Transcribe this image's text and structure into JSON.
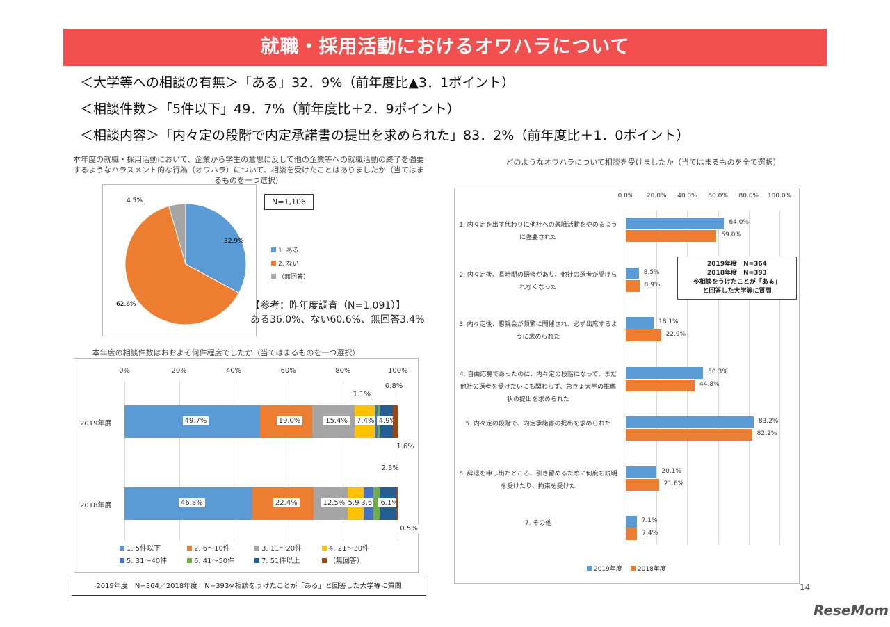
{
  "title": "就職・採用活動におけるオワハラについて",
  "headlines": [
    "＜大学等への相談の有無＞「ある」32．9%（前年度比▲3．1ポイント）",
    "＜相談件数＞「5件以下」49．7%（前年度比＋2．9ポイント）",
    "＜相談内容＞「内々定の段階で内定承諾書の提出を求められた」83．2%（前年度比＋1．0ポイント）"
  ],
  "page_number": "14",
  "logo": "ReseMom",
  "chart_data": [
    {
      "type": "pie",
      "title": "本年度の就職・採用活動において、企業から学生の意思に反して他の企業等への就職活動の終了を強要するようなハラスメント的な行為（オワハラ）について、相談を受けたことはありましたか（当てはまるものを一つ選択）",
      "n_label": "N=1,106",
      "slices": [
        {
          "label": "1. ある",
          "value": 32.9,
          "text": "32.9%",
          "color": "#5b9bd5"
        },
        {
          "label": "2. ない",
          "value": 62.6,
          "text": "62.6%",
          "color": "#ed7d31"
        },
        {
          "label": "（無回答）",
          "value": 4.5,
          "text": "4.5%",
          "color": "#a5a5a5"
        }
      ],
      "note_title": "【参考：昨年度調査（N=1,091）】",
      "note_body": "ある36.0%、ない60.6%、無回答3.4%"
    },
    {
      "type": "bar",
      "stacked": true,
      "title": "本年度の相談件数はおおよそ何件程度でしたか（当てはまるものを一つ選択）",
      "xticks": [
        "0%",
        "20%",
        "40%",
        "60%",
        "80%",
        "100%"
      ],
      "xlim": [
        0,
        100
      ],
      "categories": [
        "2019年度",
        "2018年度"
      ],
      "series": [
        {
          "name": "1. 5件以下",
          "color": "#5b9bd5",
          "values": [
            49.7,
            46.8
          ]
        },
        {
          "name": "2. 6～10件",
          "color": "#ed7d31",
          "values": [
            19.0,
            22.4
          ]
        },
        {
          "name": "3. 11～20件",
          "color": "#a5a5a5",
          "values": [
            15.4,
            12.5
          ]
        },
        {
          "name": "4. 21～30件",
          "color": "#ffc000",
          "values": [
            7.4,
            5.9
          ]
        },
        {
          "name": "5. 31～40件",
          "color": "#4472c4",
          "values": [
            1.1,
            3.6
          ]
        },
        {
          "name": "6. 41～50件",
          "color": "#70ad47",
          "values": [
            0.8,
            2.3
          ]
        },
        {
          "name": "7. 51件以上",
          "color": "#255e91",
          "values": [
            4.9,
            6.1
          ]
        },
        {
          "name": "（無回答）",
          "color": "#9e480e",
          "values": [
            1.6,
            0.5
          ]
        }
      ],
      "footnote": "2019年度　N=364／2018年度　N=393※相談をうけたことが「ある」と回答した大学等に質問"
    },
    {
      "type": "bar",
      "orientation": "horizontal",
      "title": "どのようなオワハラについて相談を受けましたか（当てはまるものを全て選択）",
      "xticks": [
        "0.0%",
        "20.0%",
        "40.0%",
        "60.0%",
        "80.0%",
        "100.0%"
      ],
      "xlim": [
        0,
        100
      ],
      "categories": [
        "1. 内々定を出す代わりに他社への就職活動をやめるように強要された",
        "2. 内々定後、長時間の研修があり、他社の選考が受けられなくなった",
        "3. 内々定後、懇親会が頻繁に開催され、必ず出席するように求められた",
        "4. 自由応募であったのに、内々定の段階になって、まだ他社の選考を受けたいにも関わらず、急きょ大学の推薦状の提出を求められた",
        "5. 内々定の段階で、内定承諾書の提出を求められた",
        "6. 辞退を申し出たところ、引き留めるために何度も説明を受けたり、拘束を受けた",
        "7. その他"
      ],
      "series": [
        {
          "name": "2019年度",
          "color": "#5b9bd5",
          "values": [
            64.0,
            8.5,
            18.1,
            50.3,
            83.2,
            20.1,
            7.1
          ]
        },
        {
          "name": "2018年度",
          "color": "#ed7d31",
          "values": [
            59.0,
            8.9,
            22.9,
            44.8,
            82.2,
            21.6,
            7.4
          ]
        }
      ],
      "note": [
        "2019年度　N=364",
        "2018年度　N=393",
        "※相談をうけたことが「ある」",
        "と回答した大学等に質問"
      ]
    }
  ]
}
